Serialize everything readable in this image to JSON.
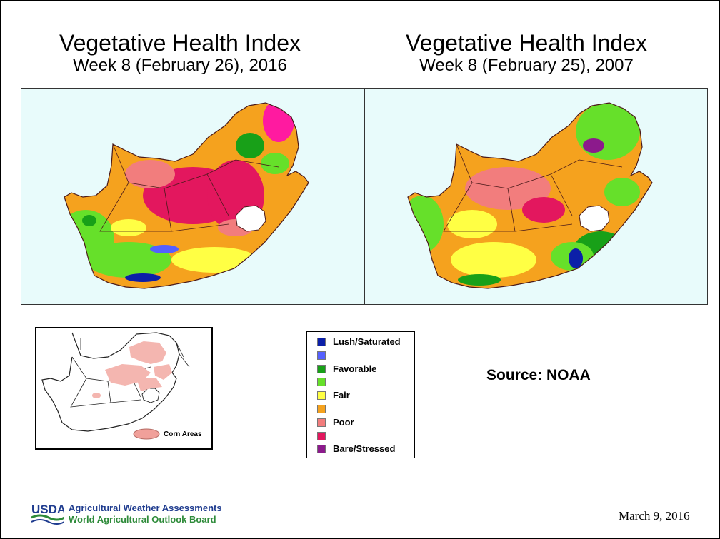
{
  "titles": {
    "left": {
      "title": "Vegetative Health Index",
      "subtitle": "Week 8 (February 26), 2016"
    },
    "right": {
      "title": "Vegetative Health Index",
      "subtitle": "Week 8 (February 25), 2007"
    }
  },
  "inset": {
    "label": "Corn Areas",
    "fill": "#f4b6b0"
  },
  "legend": [
    {
      "label": "Lush/Saturated",
      "color": "#0b1fa8"
    },
    {
      "label": "",
      "color": "#5560ff"
    },
    {
      "label": "Favorable",
      "color": "#18a018"
    },
    {
      "label": "",
      "color": "#66e02a"
    },
    {
      "label": "Fair",
      "color": "#ffff44"
    },
    {
      "label": "",
      "color": "#f5a21e"
    },
    {
      "label": "Poor",
      "color": "#f27d7d"
    },
    {
      "label": "",
      "color": "#e3175e"
    },
    {
      "label": "Bare/Stressed",
      "color": "#8c1a8c"
    }
  ],
  "source": "Source: NOAA",
  "footer": {
    "logo_text": "USDA",
    "org_line1": "Agricultural Weather Assessments",
    "org_line2": "World Agricultural Outlook Board",
    "date": "March 9, 2016"
  },
  "colors": {
    "ocean": "#e8fbfb",
    "brand_blue": "#1f3c8f",
    "brand_green": "#2e8b3a"
  }
}
